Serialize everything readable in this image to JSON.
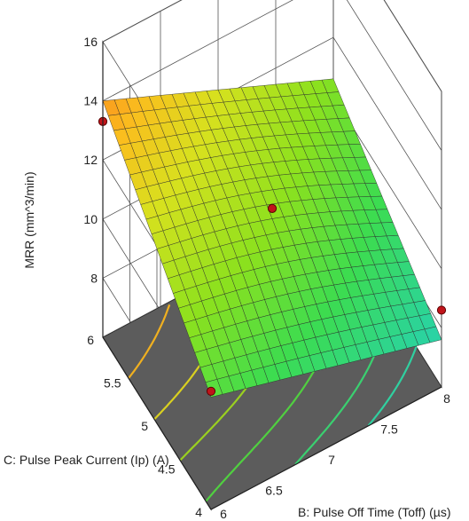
{
  "chart_data": {
    "type": "surface3d",
    "zlabel": "MRR (mm^3/min)",
    "xlabel": "B: Pulse Off Time (Toff) (µs)",
    "ylabel": "C: Pulse Peak Current (Ip) (A)",
    "zlim": [
      6,
      16
    ],
    "z_ticks": [
      8,
      10,
      12,
      14,
      16
    ],
    "x_range": [
      6,
      8
    ],
    "x_ticks": [
      6,
      6.5,
      7,
      7.5,
      8
    ],
    "y_range": [
      4,
      6
    ],
    "y_ticks": [
      4,
      4.5,
      5,
      5.5,
      6
    ],
    "grid": true,
    "surface_corners": {
      "toff6_ip6": 14.0,
      "toff8_ip6": 10.6,
      "toff6_ip4": 9.8,
      "toff8_ip4": 7.6
    },
    "points": [
      {
        "x": 7.0,
        "y": 5.0,
        "z": 11.2
      },
      {
        "x": 6.0,
        "y": 6.0,
        "z": 13.3
      },
      {
        "x": 6.0,
        "y": 4.0,
        "z": 10.0
      },
      {
        "x": 8.0,
        "y": 4.0,
        "z": 8.6
      }
    ]
  }
}
